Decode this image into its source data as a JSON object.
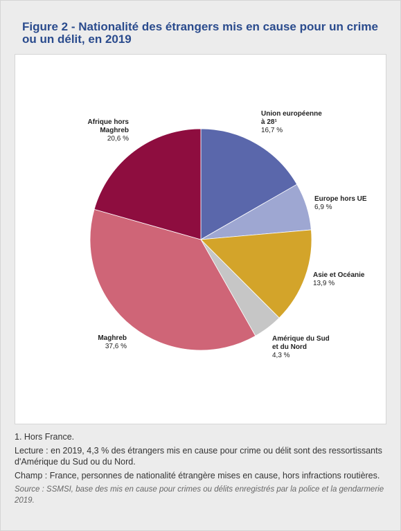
{
  "title": "Figure 2 - Nationalité des étrangers mis en cause pour un crime ou un délit, en 2019",
  "chart_data": {
    "type": "pie",
    "start_angle_deg": 0,
    "direction": "clockwise",
    "slices": [
      {
        "label": [
          "Union européenne",
          "à 28¹"
        ],
        "value": 16.7,
        "value_label": "16,7 %",
        "color": "#5a67ab"
      },
      {
        "label": [
          "Europe hors UE"
        ],
        "value": 6.9,
        "value_label": "6,9 %",
        "color": "#9ea7d2"
      },
      {
        "label": [
          "Asie et Océanie"
        ],
        "value": 13.9,
        "value_label": "13,9 %",
        "color": "#d3a42a"
      },
      {
        "label": [
          "Amérique du Sud",
          "et du Nord"
        ],
        "value": 4.3,
        "value_label": "4,3 %",
        "color": "#c6c6c6"
      },
      {
        "label": [
          "Maghreb"
        ],
        "value": 37.6,
        "value_label": "37,6 %",
        "color": "#cf6577"
      },
      {
        "label": [
          "Afrique hors",
          "Maghreb"
        ],
        "value": 20.6,
        "value_label": "20,6 %",
        "color": "#8e0d3f"
      }
    ]
  },
  "notes": {
    "footnote": "1. Hors France.",
    "lecture": "Lecture : en 2019, 4,3 % des étrangers mis en cause pour crime ou délit sont des ressortissants d'Amérique du Sud ou du Nord.",
    "champ": "Champ : France, personnes de nationalité étrangère mises en cause, hors infractions routières.",
    "source": "Source : SSMSI, base des mis en cause pour crimes ou délits enregistrés par la police et la gendarmerie 2019."
  }
}
